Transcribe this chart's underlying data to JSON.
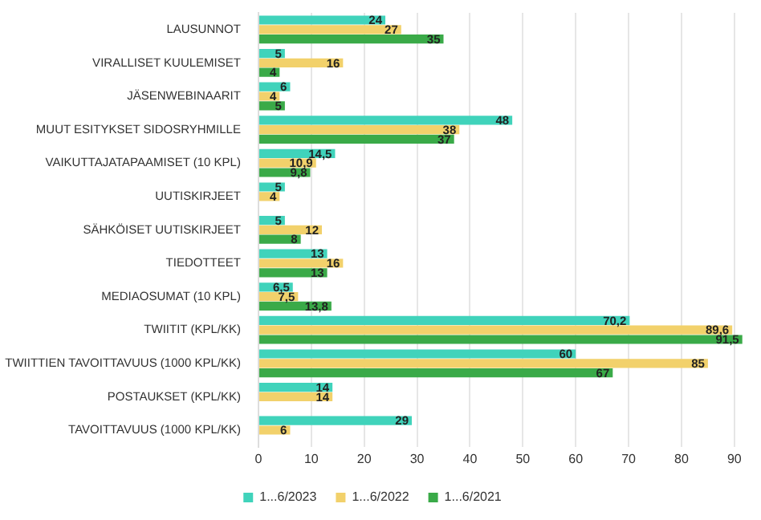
{
  "chart_data": {
    "type": "bar",
    "orientation": "horizontal",
    "categories": [
      "LAUSUNNOT",
      "VIRALLISET KUULEMISET",
      "JÄSENWEBINAARIT",
      "MUUT ESITYKSET SIDOSRYHMILLE",
      "VAIKUTTAJATAPAAMISET (10 KPL)",
      "UUTISKIRJEET",
      "SÄHKÖISET UUTISKIRJEET",
      "TIEDOTTEET",
      "MEDIAOSUMAT (10 KPL)",
      "TWIITIT (KPL/KK)",
      "TWIITTIEN TAVOITTAVUUS (1000 KPL/KK)",
      "POSTAUKSET (KPL/KK)",
      "TAVOITTAVUUS (1000 KPL/KK)"
    ],
    "series": [
      {
        "name": "1...6/2023",
        "color": "#40d3bb",
        "values": [
          24,
          5,
          6,
          48,
          14.5,
          5,
          5,
          13,
          6.5,
          70.2,
          60,
          14,
          29
        ],
        "value_labels": [
          "24",
          "5",
          "6",
          "48",
          "14,5",
          "5",
          "5",
          "13",
          "6,5",
          "70,2",
          "60",
          "14",
          "29"
        ]
      },
      {
        "name": "1...6/2022",
        "color": "#f2d16b",
        "values": [
          27,
          16,
          4,
          38,
          10.9,
          4,
          12,
          16,
          7.5,
          89.6,
          85,
          14,
          6
        ],
        "value_labels": [
          "27",
          "16",
          "4",
          "38",
          "10,9",
          "4",
          "12",
          "16",
          "7,5",
          "89,6",
          "85",
          "14",
          "6"
        ]
      },
      {
        "name": "1...6/2021",
        "color": "#3aaa48",
        "values": [
          35,
          4,
          5,
          37,
          9.8,
          null,
          8,
          13,
          13.8,
          91.5,
          67,
          null,
          null
        ],
        "value_labels": [
          "35",
          "4",
          "5",
          "37",
          "9,8",
          null,
          "8",
          "13",
          "13,8",
          "91,5",
          "67",
          null,
          null
        ]
      }
    ],
    "xlim": [
      0,
      92
    ],
    "xticks": [
      0,
      10,
      20,
      30,
      40,
      50,
      60,
      70,
      80,
      90
    ],
    "grid": "x",
    "legend": "bottom"
  }
}
